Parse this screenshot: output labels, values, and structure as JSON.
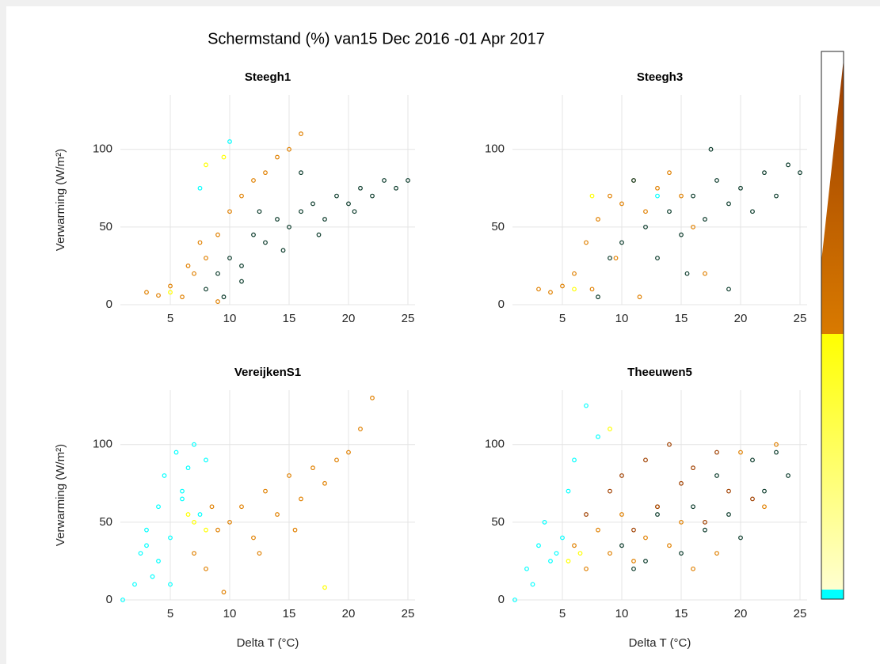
{
  "title": "Schermstand (%) van15 Dec 2016 -01 Apr 2017",
  "chart_data": [
    {
      "type": "scatter",
      "title": "Steegh1",
      "ylabel": "Verwarming (W/m²)",
      "xlim": [
        0.8,
        25.6
      ],
      "ylim": [
        0,
        135
      ],
      "xticks": [
        5,
        10,
        15,
        20,
        25
      ],
      "yticks": [
        0,
        50,
        100
      ],
      "grid": true,
      "series": [
        {
          "color": "#00ffff",
          "x": [
            7.5,
            10
          ],
          "values": [
            75,
            105
          ]
        },
        {
          "color": "#ffff00",
          "x": [
            5,
            8,
            9.5
          ],
          "values": [
            8,
            90,
            95
          ]
        },
        {
          "color": "#e08000",
          "x": [
            3,
            4,
            5,
            6,
            7,
            8,
            9,
            10,
            11,
            12,
            13,
            14,
            15,
            16,
            9,
            7.5,
            6.5
          ],
          "values": [
            8,
            6,
            12,
            5,
            20,
            30,
            45,
            60,
            70,
            80,
            85,
            95,
            100,
            110,
            2,
            40,
            25
          ]
        },
        {
          "color": "#0a3a2a",
          "x": [
            8,
            9,
            10,
            11,
            12,
            13,
            14,
            15,
            16,
            17,
            18,
            19,
            20,
            21,
            22,
            23,
            24,
            25,
            9.5,
            12.5,
            14.5,
            17.5,
            20.5,
            11,
            16
          ],
          "values": [
            10,
            20,
            30,
            25,
            45,
            40,
            55,
            50,
            60,
            65,
            55,
            70,
            65,
            75,
            70,
            80,
            75,
            80,
            5,
            60,
            35,
            45,
            60,
            15,
            85
          ]
        }
      ]
    },
    {
      "type": "scatter",
      "title": "Steegh3",
      "xlim": [
        0.8,
        25.6
      ],
      "ylim": [
        0,
        135
      ],
      "xticks": [
        5,
        10,
        15,
        20,
        25
      ],
      "yticks": [
        0,
        50,
        100
      ],
      "grid": true,
      "series": [
        {
          "color": "#00ffff",
          "x": [
            13
          ],
          "values": [
            70
          ]
        },
        {
          "color": "#ffff00",
          "x": [
            6,
            7.5
          ],
          "values": [
            10,
            70
          ]
        },
        {
          "color": "#e08000",
          "x": [
            3,
            4,
            5,
            6,
            7,
            8,
            9,
            10,
            11,
            12,
            13,
            14,
            15,
            16,
            17,
            7.5,
            9.5,
            11.5
          ],
          "values": [
            10,
            8,
            12,
            20,
            40,
            55,
            70,
            65,
            80,
            60,
            75,
            85,
            70,
            50,
            20,
            10,
            30,
            5
          ]
        },
        {
          "color": "#0a3a2a",
          "x": [
            8,
            10,
            12,
            13,
            14,
            15,
            16,
            17,
            18,
            19,
            20,
            21,
            22,
            23,
            24,
            25,
            11,
            15.5,
            17.5,
            19,
            9
          ],
          "values": [
            5,
            40,
            50,
            30,
            60,
            45,
            70,
            55,
            80,
            65,
            75,
            60,
            85,
            70,
            90,
            85,
            80,
            20,
            100,
            10,
            30
          ]
        }
      ]
    },
    {
      "type": "scatter",
      "title": "VereijkenS1",
      "ylabel": "Verwarming (W/m²)",
      "xlabel": "Delta T (°C)",
      "xlim": [
        0.8,
        25.6
      ],
      "ylim": [
        0,
        135
      ],
      "xticks": [
        5,
        10,
        15,
        20,
        25
      ],
      "yticks": [
        0,
        50,
        100
      ],
      "grid": true,
      "series": [
        {
          "color": "#00ffff",
          "x": [
            1,
            2,
            2.5,
            3,
            3.5,
            4,
            4.5,
            5,
            5.5,
            6,
            6.5,
            7,
            7.5,
            8,
            4,
            5,
            3,
            6
          ],
          "values": [
            0,
            10,
            30,
            45,
            15,
            60,
            80,
            40,
            95,
            70,
            85,
            100,
            55,
            90,
            25,
            10,
            35,
            65
          ]
        },
        {
          "color": "#ffff00",
          "x": [
            6.5,
            7,
            8,
            18
          ],
          "values": [
            55,
            50,
            45,
            8
          ]
        },
        {
          "color": "#e08000",
          "x": [
            7,
            8,
            9,
            10,
            11,
            12,
            13,
            14,
            15,
            16,
            17,
            18,
            19,
            20,
            21,
            22,
            9.5,
            12.5,
            15.5,
            8.5
          ],
          "values": [
            30,
            20,
            45,
            50,
            60,
            40,
            70,
            55,
            80,
            65,
            85,
            75,
            90,
            95,
            110,
            130,
            5,
            30,
            45,
            60
          ]
        }
      ]
    },
    {
      "type": "scatter",
      "title": "Theeuwen5",
      "xlabel": "Delta T (°C)",
      "xlim": [
        0.8,
        25.6
      ],
      "ylim": [
        0,
        135
      ],
      "xticks": [
        5,
        10,
        15,
        20,
        25
      ],
      "yticks": [
        0,
        50,
        100
      ],
      "grid": true,
      "series": [
        {
          "color": "#00ffff",
          "x": [
            1,
            2,
            3,
            3.5,
            4,
            5,
            5.5,
            6,
            7,
            8,
            2.5,
            4.5
          ],
          "values": [
            0,
            20,
            35,
            50,
            25,
            40,
            70,
            90,
            125,
            105,
            10,
            30
          ]
        },
        {
          "color": "#ffff00",
          "x": [
            5.5,
            6.5,
            9
          ],
          "values": [
            25,
            30,
            110
          ]
        },
        {
          "color": "#e08000",
          "x": [
            6,
            7,
            8,
            9,
            10,
            11,
            12,
            13,
            14,
            15,
            16,
            18,
            20,
            22,
            23
          ],
          "values": [
            35,
            20,
            45,
            30,
            55,
            25,
            40,
            60,
            35,
            50,
            20,
            30,
            95,
            60,
            100
          ]
        },
        {
          "color": "#a04000",
          "x": [
            7,
            9,
            10,
            11,
            12,
            13,
            14,
            15,
            16,
            17,
            18,
            19,
            21
          ],
          "values": [
            55,
            70,
            80,
            45,
            90,
            60,
            100,
            75,
            85,
            50,
            95,
            70,
            65
          ]
        },
        {
          "color": "#0a3a2a",
          "x": [
            10,
            11,
            12,
            13,
            15,
            16,
            17,
            18,
            19,
            20,
            21,
            22,
            23,
            24
          ],
          "values": [
            35,
            20,
            25,
            55,
            30,
            60,
            45,
            80,
            55,
            40,
            90,
            70,
            95,
            80
          ]
        }
      ]
    }
  ]
}
